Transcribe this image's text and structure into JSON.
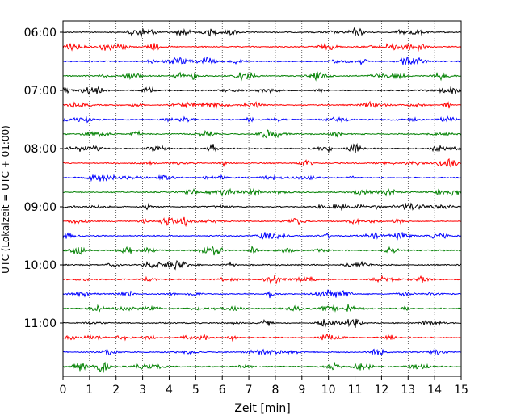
{
  "chart_data": {
    "type": "line",
    "title": "",
    "xlabel": "Zeit  [min]",
    "ylabel": "UTC (Lokalzeit = UTC + 01:00)",
    "xlim": [
      0,
      15
    ],
    "x_ticks": [
      0,
      1,
      2,
      3,
      4,
      5,
      6,
      7,
      8,
      9,
      10,
      11,
      12,
      13,
      14,
      15
    ],
    "y_tick_labels": [
      "06:00",
      "07:00",
      "08:00",
      "09:00",
      "10:00",
      "11:00"
    ],
    "trace_interval_minutes": 15,
    "grid": "vertical dotted at each minute",
    "trace_colors": [
      "#000000",
      "#ff0000",
      "#0000ff",
      "#008000"
    ],
    "traces": [
      {
        "start": "06:00",
        "color": "#000000"
      },
      {
        "start": "06:15",
        "color": "#ff0000"
      },
      {
        "start": "06:30",
        "color": "#0000ff"
      },
      {
        "start": "06:45",
        "color": "#008000"
      },
      {
        "start": "07:00",
        "color": "#000000"
      },
      {
        "start": "07:15",
        "color": "#ff0000"
      },
      {
        "start": "07:30",
        "color": "#0000ff"
      },
      {
        "start": "07:45",
        "color": "#008000"
      },
      {
        "start": "08:00",
        "color": "#000000"
      },
      {
        "start": "08:15",
        "color": "#ff0000"
      },
      {
        "start": "08:30",
        "color": "#0000ff"
      },
      {
        "start": "08:45",
        "color": "#008000"
      },
      {
        "start": "09:00",
        "color": "#000000"
      },
      {
        "start": "09:15",
        "color": "#ff0000"
      },
      {
        "start": "09:30",
        "color": "#0000ff"
      },
      {
        "start": "09:45",
        "color": "#008000"
      },
      {
        "start": "10:00",
        "color": "#000000"
      },
      {
        "start": "10:15",
        "color": "#ff0000"
      },
      {
        "start": "10:30",
        "color": "#0000ff"
      },
      {
        "start": "10:45",
        "color": "#008000"
      },
      {
        "start": "11:00",
        "color": "#000000"
      },
      {
        "start": "11:15",
        "color": "#ff0000"
      },
      {
        "start": "11:30",
        "color": "#0000ff"
      },
      {
        "start": "11:45",
        "color": "#008000"
      }
    ]
  }
}
